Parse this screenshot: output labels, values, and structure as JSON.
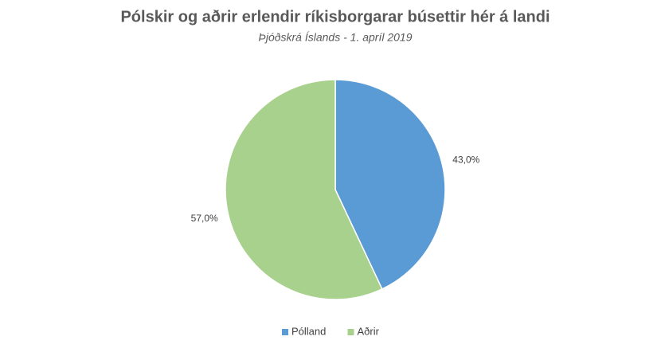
{
  "chart_data": {
    "type": "pie",
    "title": "Pólskir og aðrir erlendir ríkisborgarar búsettir hér á landi",
    "subtitle": "Þjóðskrá Íslands - 1. apríl 2019",
    "categories": [
      "Pólland",
      "Aðrir"
    ],
    "values": [
      43.0,
      57.0
    ],
    "value_labels": [
      "43,0%",
      "57,0%"
    ],
    "colors": [
      "#5b9bd5",
      "#a9d18e"
    ],
    "legend": "bottom"
  }
}
